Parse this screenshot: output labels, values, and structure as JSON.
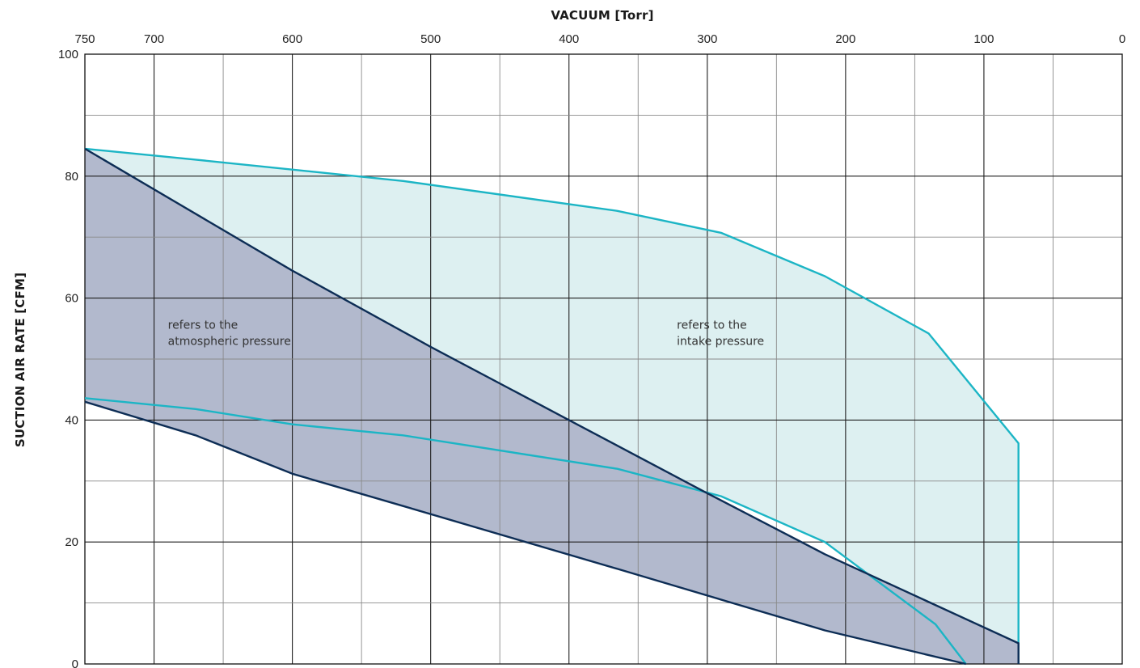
{
  "chart_data": {
    "type": "area",
    "title": "",
    "x_axis": {
      "label": "VACUUM  [Torr]",
      "position": "top",
      "reversed": true,
      "range": [
        750,
        0
      ],
      "ticks": [
        750,
        700,
        600,
        500,
        400,
        300,
        200,
        100,
        0
      ],
      "tick_labels": [
        "750",
        "700",
        "600",
        "500",
        "400",
        "300",
        "200",
        "100",
        "0"
      ],
      "grid_step": 50
    },
    "y_axis": {
      "label": "SUCTION AIR RATE  [CFM]",
      "range": [
        0,
        100
      ],
      "ticks": [
        0,
        20,
        40,
        60,
        80,
        100
      ],
      "tick_labels": [
        "0",
        "20",
        "40",
        "60",
        "80",
        "100"
      ],
      "grid_step": 10
    },
    "grid": true,
    "series": [
      {
        "group": "intake",
        "role": "upper",
        "color": "#1cb5c5",
        "x": [
          750,
          670,
          520,
          365,
          290,
          215,
          140,
          75,
          75
        ],
        "y": [
          84.5,
          82.7,
          79.2,
          74.3,
          70.7,
          63.6,
          54.2,
          36.2,
          0
        ]
      },
      {
        "group": "intake",
        "role": "lower",
        "color": "#1cb5c5",
        "x": [
          750,
          670,
          600,
          520,
          365,
          290,
          215,
          135,
          113
        ],
        "y": [
          43.6,
          41.8,
          39.3,
          37.5,
          32,
          27.5,
          20,
          6.5,
          0
        ]
      },
      {
        "group": "atmospheric",
        "role": "upper",
        "color": "#0d2d55",
        "x": [
          750,
          600,
          500,
          400,
          300,
          215,
          75,
          75
        ],
        "y": [
          84.5,
          64.5,
          52,
          40,
          28,
          18,
          3.4,
          0
        ]
      },
      {
        "group": "atmospheric",
        "role": "lower",
        "color": "#0d2d55",
        "x": [
          750,
          670,
          600,
          520,
          365,
          215,
          113
        ],
        "y": [
          43,
          37.5,
          31.2,
          25.9,
          15.6,
          5.5,
          0
        ]
      }
    ],
    "fills": {
      "intake": "#ddf0f1",
      "atmospheric": "#b2b9cd"
    },
    "annotations": [
      {
        "lines": [
          "refers to the",
          "atmospheric pressure"
        ],
        "x": 690,
        "y": 55
      },
      {
        "lines": [
          "refers to the",
          "intake pressure"
        ],
        "x": 322,
        "y": 55
      }
    ]
  }
}
